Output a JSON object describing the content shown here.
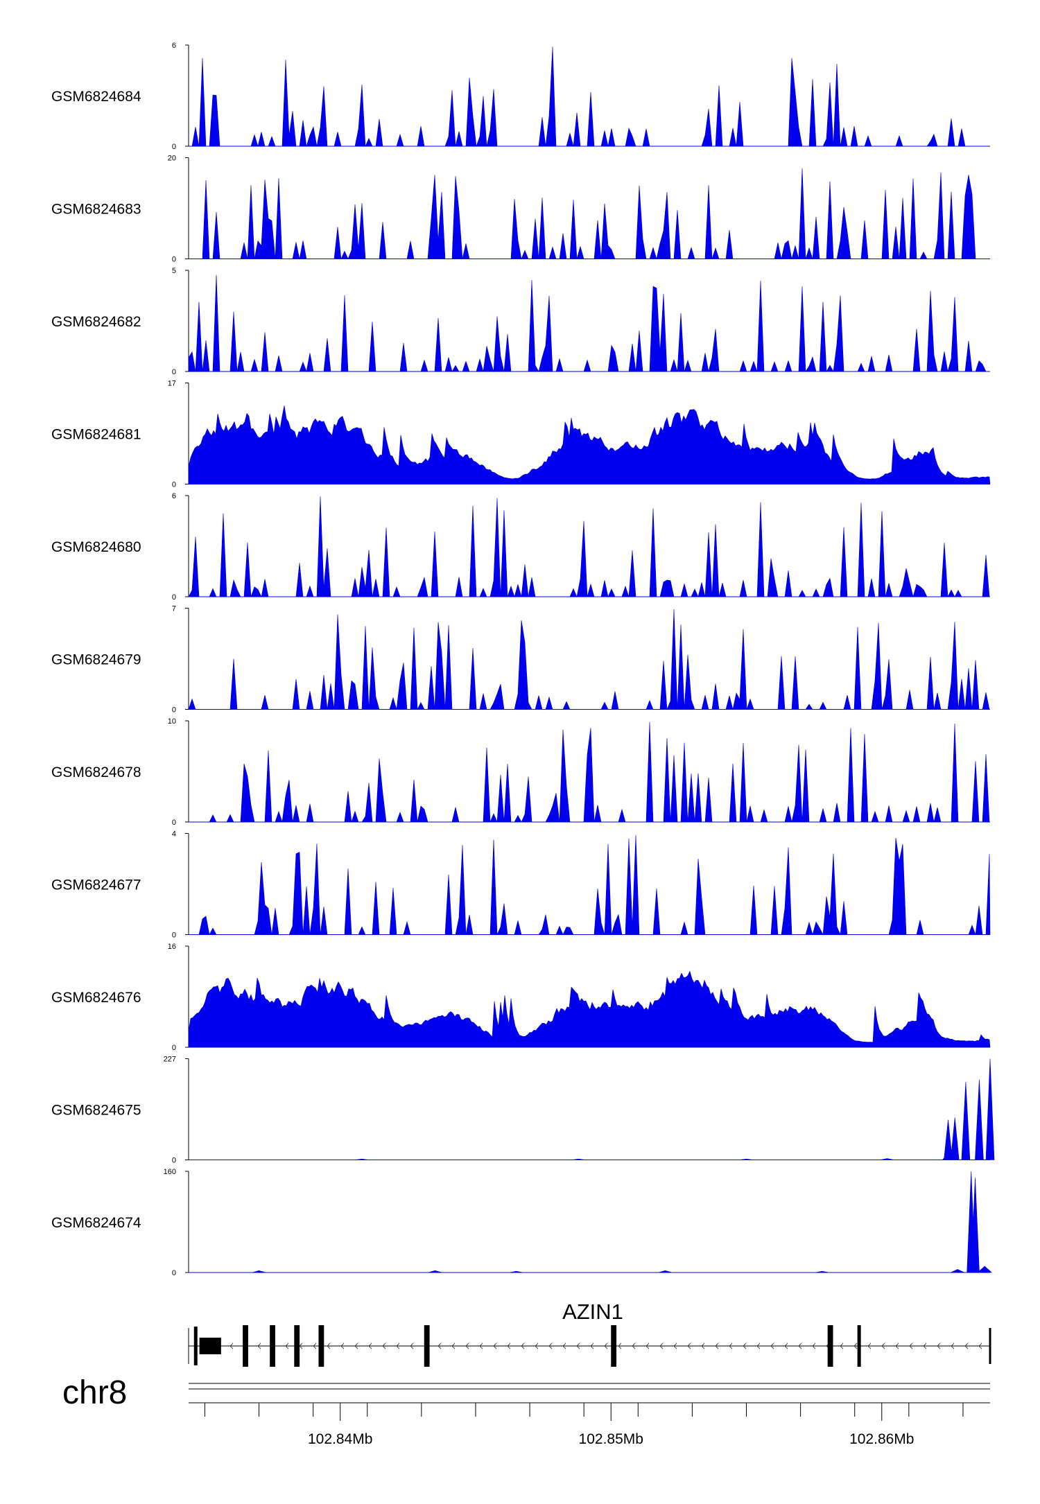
{
  "chart_data": {
    "type": "area",
    "chromosome": "chr8",
    "x_range_mb": [
      102.8344,
      102.864
    ],
    "x_ticks_mb": [
      102.84,
      102.85,
      102.86
    ],
    "x_tick_labels": [
      "102.84Mb",
      "102.85Mb",
      "102.86Mb"
    ],
    "fill_color": "#0000ee",
    "tracks": [
      {
        "name": "GSM6824684",
        "ymax": 6,
        "ymax_label": "6",
        "ymin_label": "0",
        "style": "sparse",
        "peak_x": [],
        "peak_y": []
      },
      {
        "name": "GSM6824683",
        "ymax": 20,
        "ymax_label": "20",
        "ymin_label": "0",
        "style": "sparse",
        "peak_x": [],
        "peak_y": []
      },
      {
        "name": "GSM6824682",
        "ymax": 5,
        "ymax_label": "5",
        "ymin_label": "0",
        "style": "sparse",
        "peak_x": [],
        "peak_y": []
      },
      {
        "name": "GSM6824681",
        "ymax": 17,
        "ymax_label": "17",
        "ymin_label": "0",
        "style": "dense",
        "peak_x": [],
        "peak_y": []
      },
      {
        "name": "GSM6824680",
        "ymax": 6,
        "ymax_label": "6",
        "ymin_label": "0",
        "style": "sparse",
        "peak_x": [],
        "peak_y": []
      },
      {
        "name": "GSM6824679",
        "ymax": 7,
        "ymax_label": "7",
        "ymin_label": "0",
        "style": "sparse",
        "peak_x": [],
        "peak_y": []
      },
      {
        "name": "GSM6824678",
        "ymax": 10,
        "ymax_label": "10",
        "ymin_label": "0",
        "style": "sparse",
        "peak_x": [],
        "peak_y": []
      },
      {
        "name": "GSM6824677",
        "ymax": 4,
        "ymax_label": "4",
        "ymin_label": "0",
        "style": "sparse",
        "peak_x": [],
        "peak_y": []
      },
      {
        "name": "GSM6824676",
        "ymax": 16,
        "ymax_label": "16",
        "ymin_label": "0",
        "style": "dense",
        "peak_x": [],
        "peak_y": []
      },
      {
        "name": "GSM6824675",
        "ymax": 227,
        "ymax_label": "227",
        "ymin_label": "0",
        "style": "peaks",
        "peak_x": [
          102.8408,
          102.8488,
          102.855,
          102.8602,
          102.8625,
          102.86245,
          102.8627,
          102.8631,
          102.8636,
          102.864
        ],
        "peak_y": [
          2,
          2,
          2,
          3,
          20,
          90,
          95,
          175,
          180,
          227
        ]
      },
      {
        "name": "GSM6824674",
        "ymax": 160,
        "ymax_label": "160",
        "ymin_label": "0",
        "style": "peaks",
        "peak_x": [
          102.837,
          102.8435,
          102.8465,
          102.852,
          102.8578,
          102.8628,
          102.8633,
          102.86345,
          102.8638
        ],
        "peak_y": [
          3,
          3,
          2,
          3,
          2,
          5,
          160,
          150,
          10
        ]
      }
    ],
    "gene": {
      "name": "AZIN1",
      "strand": "-",
      "start_mb": 102.8344,
      "end_mb": 102.864,
      "exons": [
        {
          "start_mb": 102.8348,
          "end_mb": 102.8356
        },
        {
          "start_mb": 102.8364,
          "end_mb": 102.8366
        },
        {
          "start_mb": 102.8374,
          "end_mb": 102.8376
        },
        {
          "start_mb": 102.8383,
          "end_mb": 102.8385
        },
        {
          "start_mb": 102.8392,
          "end_mb": 102.8394
        },
        {
          "start_mb": 102.8431,
          "end_mb": 102.8433
        },
        {
          "start_mb": 102.85,
          "end_mb": 102.8502
        },
        {
          "start_mb": 102.858,
          "end_mb": 102.8582
        },
        {
          "start_mb": 102.8591,
          "end_mb": 102.8592
        }
      ]
    }
  }
}
